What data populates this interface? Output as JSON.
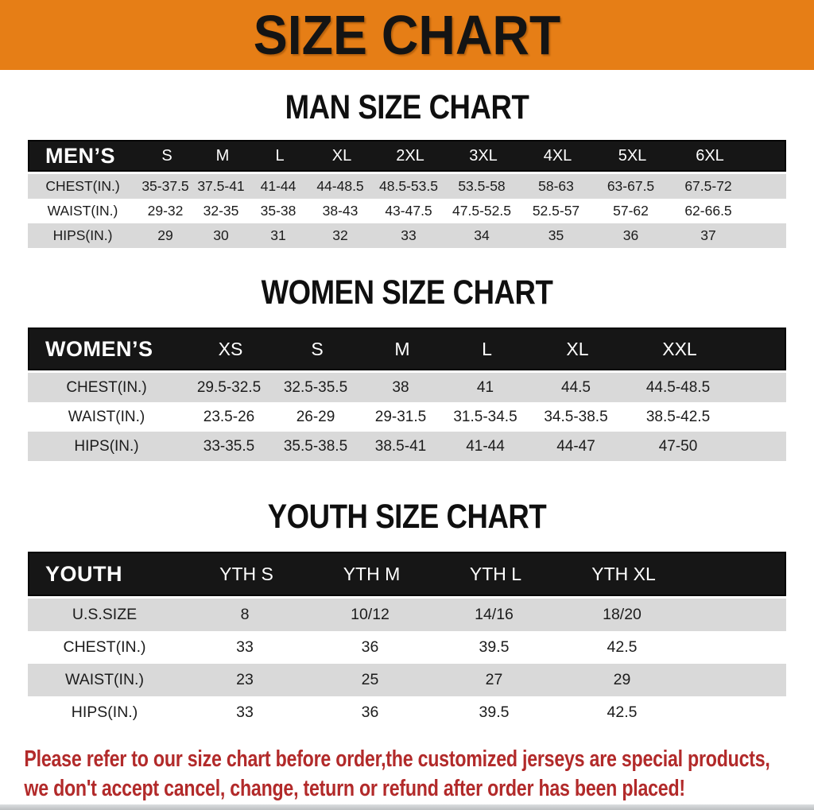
{
  "banner": {
    "title": "SIZE CHART"
  },
  "colors": {
    "banner_bg": "#e67e16",
    "table_header_bg": "#161616",
    "stripe_row": "#d9d9d9",
    "disclaimer_text": "#b22a2a"
  },
  "chart_data": [
    {
      "type": "table",
      "title": "MAN SIZE CHART",
      "header_label": "MEN’S",
      "columns": [
        "S",
        "M",
        "L",
        "XL",
        "2XL",
        "3XL",
        "4XL",
        "5XL",
        "6XL"
      ],
      "rows": [
        {
          "label": "CHEST(IN.)",
          "values": [
            "35-37.5",
            "37.5-41",
            "41-44",
            "44-48.5",
            "48.5-53.5",
            "53.5-58",
            "58-63",
            "63-67.5",
            "67.5-72"
          ]
        },
        {
          "label": "WAIST(IN.)",
          "values": [
            "29-32",
            "32-35",
            "35-38",
            "38-43",
            "43-47.5",
            "47.5-52.5",
            "52.5-57",
            "57-62",
            "62-66.5"
          ]
        },
        {
          "label": "HIPS(IN.)",
          "values": [
            "29",
            "30",
            "31",
            "32",
            "33",
            "34",
            "35",
            "36",
            "37"
          ]
        }
      ]
    },
    {
      "type": "table",
      "title": "WOMEN SIZE CHART",
      "header_label": "WOMEN’S",
      "columns": [
        "XS",
        "S",
        "M",
        "L",
        "XL",
        "XXL"
      ],
      "rows": [
        {
          "label": "CHEST(IN.)",
          "values": [
            "29.5-32.5",
            "32.5-35.5",
            "38",
            "41",
            "44.5",
            "44.5-48.5"
          ]
        },
        {
          "label": "WAIST(IN.)",
          "values": [
            "23.5-26",
            "26-29",
            "29-31.5",
            "31.5-34.5",
            "34.5-38.5",
            "38.5-42.5"
          ]
        },
        {
          "label": "HIPS(IN.)",
          "values": [
            "33-35.5",
            "35.5-38.5",
            "38.5-41",
            "41-44",
            "44-47",
            "47-50"
          ]
        }
      ]
    },
    {
      "type": "table",
      "title": "YOUTH SIZE CHART",
      "header_label": "YOUTH",
      "columns": [
        "YTH S",
        "YTH M",
        "YTH L",
        "YTH XL"
      ],
      "rows": [
        {
          "label": "U.S.SIZE",
          "values": [
            "8",
            "10/12",
            "14/16",
            "18/20"
          ]
        },
        {
          "label": "CHEST(IN.)",
          "values": [
            "33",
            "36",
            "39.5",
            "42.5"
          ]
        },
        {
          "label": "WAIST(IN.)",
          "values": [
            "23",
            "25",
            "27",
            "29"
          ]
        },
        {
          "label": "HIPS(IN.)",
          "values": [
            "33",
            "36",
            "39.5",
            "42.5"
          ]
        }
      ]
    }
  ],
  "disclaimer": {
    "line1": "Please refer to our size chart before order,the customized jerseys are special products,",
    "line2": "we don't accept cancel, change, teturn or refund after order has been placed!"
  }
}
